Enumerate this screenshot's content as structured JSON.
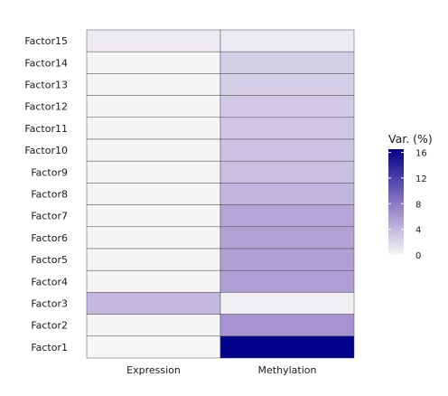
{
  "chart_data": {
    "type": "heatmap",
    "x_categories": [
      "Expression",
      "Methylation"
    ],
    "y_categories": [
      "Factor15",
      "Factor14",
      "Factor13",
      "Factor12",
      "Factor11",
      "Factor10",
      "Factor9",
      "Factor8",
      "Factor7",
      "Factor6",
      "Factor5",
      "Factor4",
      "Factor3",
      "Factor2",
      "Factor1"
    ],
    "values": [
      [
        0.8,
        0.8
      ],
      [
        0.1,
        2.6
      ],
      [
        0.1,
        2.6
      ],
      [
        0.1,
        2.9
      ],
      [
        0.1,
        3.1
      ],
      [
        0.1,
        3.3
      ],
      [
        0.1,
        3.5
      ],
      [
        0.1,
        4.2
      ],
      [
        0.1,
        5.2
      ],
      [
        0.1,
        5.3
      ],
      [
        0.1,
        5.5
      ],
      [
        0.1,
        5.6
      ],
      [
        4.0,
        0.6
      ],
      [
        0.1,
        6.3
      ],
      [
        0.0,
        16.5
      ]
    ],
    "legend": {
      "title": "Var. (%)",
      "ticks": [
        16,
        12,
        8,
        4,
        0
      ],
      "min": 0,
      "max": 16.5,
      "low_color": "#f7f7f7",
      "high_color": "#00008b",
      "placement": "right"
    },
    "cell_border_color": "#4d4d4d"
  }
}
